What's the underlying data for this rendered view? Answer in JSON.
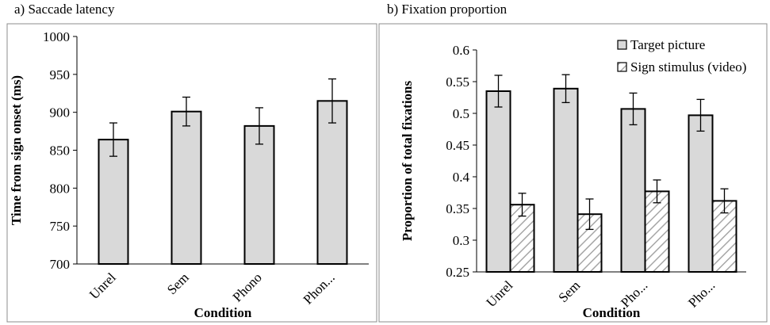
{
  "chart_data": [
    {
      "panel_title": "a) Saccade latency",
      "type": "bar",
      "categories": [
        "Unrel",
        "Sem",
        "Phono",
        "Phon..."
      ],
      "series": [
        {
          "values": [
            864,
            901,
            882,
            915
          ],
          "errors": [
            22,
            19,
            24,
            29
          ],
          "color": "#d9d9d9"
        }
      ],
      "xlabel": "Condition",
      "ylabel": "Time from sign onset (ms)",
      "ylim": [
        700,
        1000
      ],
      "yticks": [
        "700",
        "750",
        "800",
        "850",
        "900",
        "950",
        "1000"
      ]
    },
    {
      "panel_title": "b) Fixation proportion",
      "type": "bar",
      "categories": [
        "Unrel",
        "Sem",
        "Pho...",
        "Pho..."
      ],
      "series": [
        {
          "name": "Target picture",
          "values": [
            0.535,
            0.539,
            0.507,
            0.497
          ],
          "errors": [
            0.025,
            0.022,
            0.025,
            0.025
          ],
          "color": "#d9d9d9",
          "pattern": "solid"
        },
        {
          "name": "Sign stimulus (video)",
          "values": [
            0.356,
            0.341,
            0.377,
            0.362
          ],
          "errors": [
            0.018,
            0.024,
            0.018,
            0.019
          ],
          "color": "#ffffff",
          "pattern": "hatched"
        }
      ],
      "xlabel": "Condition",
      "ylabel": "Proportion of total fixations",
      "ylim": [
        0.25,
        0.6
      ],
      "yticks": [
        "0.25",
        "0.3",
        "0.35",
        "0.4",
        "0.45",
        "0.5",
        "0.55",
        "0.6"
      ],
      "legend": "top-right"
    }
  ]
}
